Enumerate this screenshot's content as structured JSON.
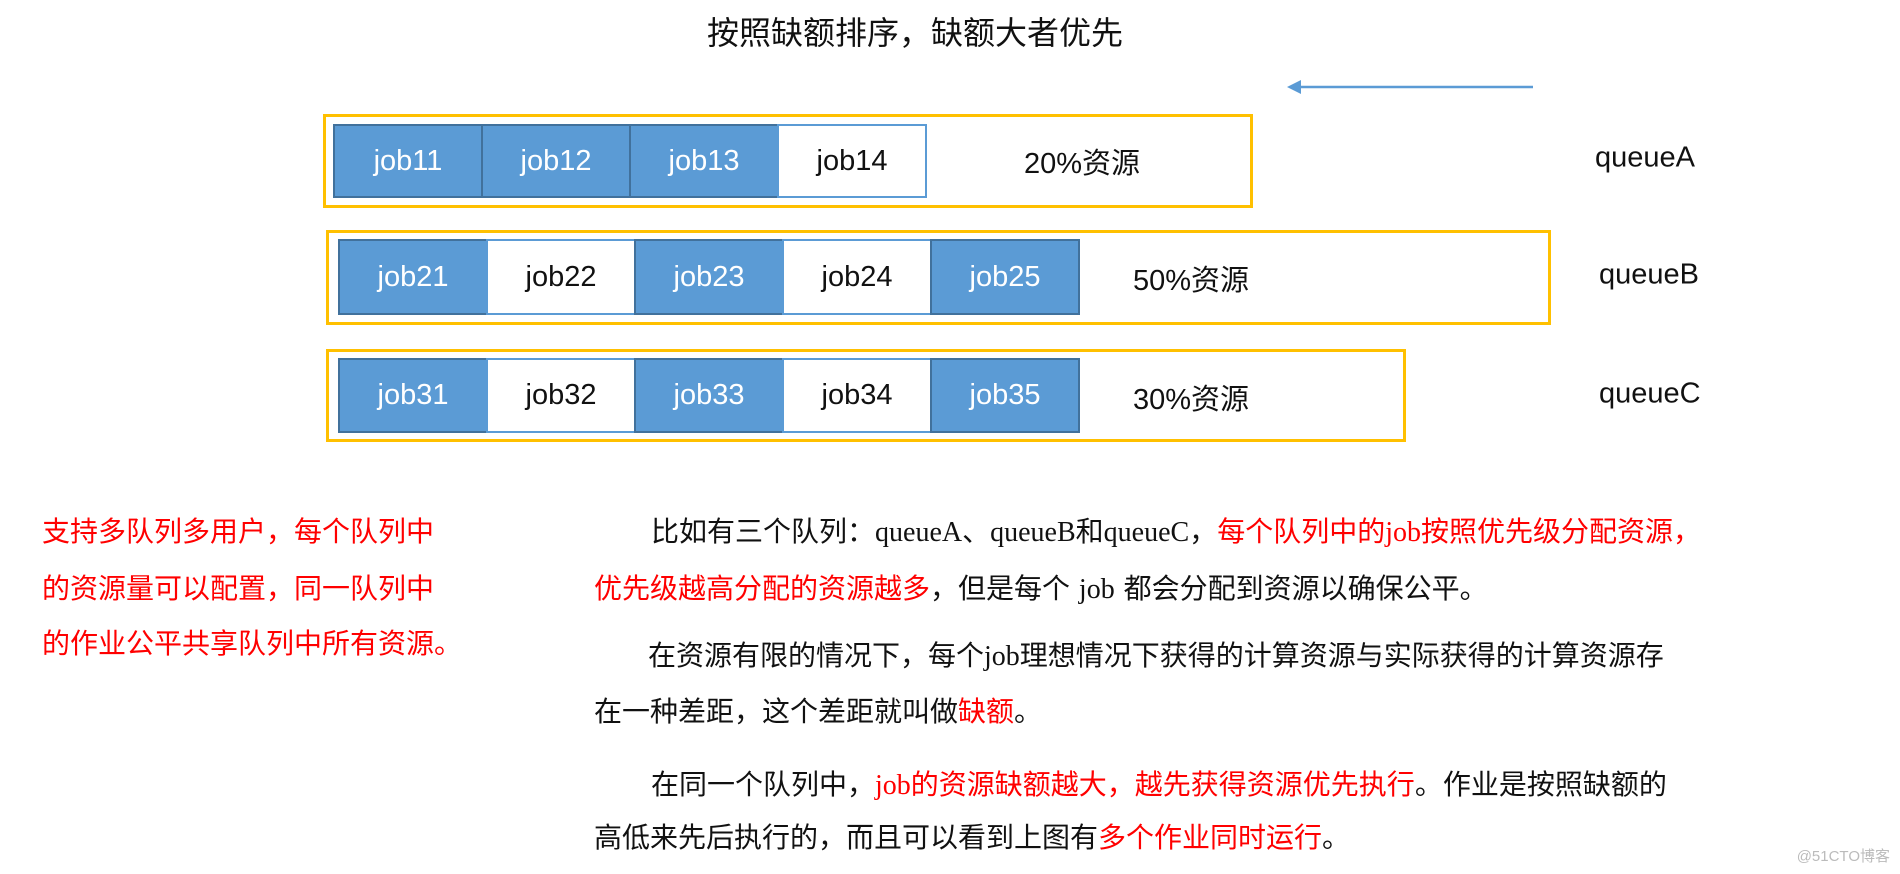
{
  "title": "按照缺额排序，缺额大者优先",
  "arrow": {
    "direction": "left",
    "color": "#5b9bd5"
  },
  "colors": {
    "job_filled": "#5b9bd5",
    "job_border": "#41719c",
    "queue_border": "#ffc000",
    "highlight": "#ff0000"
  },
  "queues": [
    {
      "label": "queueA",
      "resource": "20%资源",
      "jobs": [
        {
          "name": "job11",
          "filled": true
        },
        {
          "name": "job12",
          "filled": true
        },
        {
          "name": "job13",
          "filled": true
        },
        {
          "name": "job14",
          "filled": false
        }
      ]
    },
    {
      "label": "queueB",
      "resource": "50%资源",
      "jobs": [
        {
          "name": "job21",
          "filled": true
        },
        {
          "name": "job22",
          "filled": false
        },
        {
          "name": "job23",
          "filled": true
        },
        {
          "name": "job24",
          "filled": false
        },
        {
          "name": "job25",
          "filled": true
        }
      ]
    },
    {
      "label": "queueC",
      "resource": "30%资源",
      "jobs": [
        {
          "name": "job31",
          "filled": true
        },
        {
          "name": "job32",
          "filled": false
        },
        {
          "name": "job33",
          "filled": true
        },
        {
          "name": "job34",
          "filled": false
        },
        {
          "name": "job35",
          "filled": true
        }
      ]
    }
  ],
  "left_note": [
    "支持多队列多用户，每个队列中",
    "的资源量可以配置，同一队列中",
    "的作业公平共享队列中所有资源。"
  ],
  "paragraphs": [
    [
      [
        {
          "t": "比如有三个队列：",
          "red": false
        },
        {
          "t": "queueA、queueB",
          "red": false,
          "serif": true
        },
        {
          "t": "和",
          "red": false
        },
        {
          "t": "queueC",
          "red": false,
          "serif": true
        },
        {
          "t": "，",
          "red": false
        },
        {
          "t": "每个队列中的",
          "red": true
        },
        {
          "t": "job",
          "red": true,
          "serif": true
        },
        {
          "t": "按照优先级分配资源，",
          "red": true
        }
      ],
      [
        {
          "t": "优先级越高分配的资源越多",
          "red": true
        },
        {
          "t": "，但是每个 ",
          "red": false
        },
        {
          "t": "job",
          "red": false,
          "serif": true
        },
        {
          "t": " 都会分配到资源以确保公平。",
          "red": false
        }
      ]
    ],
    [
      [
        {
          "t": "在资源有限的情况下，每个",
          "red": false
        },
        {
          "t": "job",
          "red": false,
          "serif": true
        },
        {
          "t": "理想情况下获得的计算资源与实际获得的计算资源存",
          "red": false
        }
      ],
      [
        {
          "t": "在一种差距，这个差距就叫做",
          "red": false
        },
        {
          "t": "缺额",
          "red": true
        },
        {
          "t": "。",
          "red": false
        }
      ]
    ],
    [
      [
        {
          "t": "在同一个队列中，",
          "red": false
        },
        {
          "t": "job",
          "red": true,
          "serif": true
        },
        {
          "t": "的资源缺额越大，越先获得资源优先执行",
          "red": true
        },
        {
          "t": "。作业是按照缺额的",
          "red": false
        }
      ],
      [
        {
          "t": "高低来先后执行的，而且可以看到上图有",
          "red": false
        },
        {
          "t": "多个作业同时运行",
          "red": true
        },
        {
          "t": "。",
          "red": false
        }
      ]
    ]
  ],
  "watermark": "@51CTO博客"
}
